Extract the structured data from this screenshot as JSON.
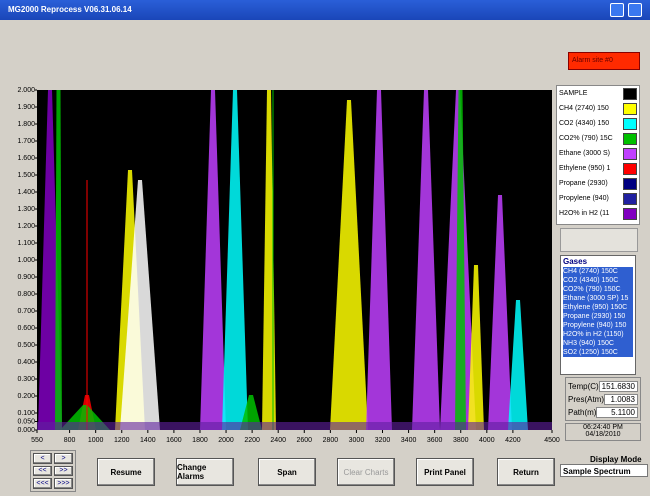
{
  "window": {
    "title": "MG2000 Reprocess   V06.31.06.14",
    "alarm": "Alarm site #0"
  },
  "chart_data": {
    "type": "area",
    "xlim": [
      550,
      4500
    ],
    "xticks": [
      550,
      800,
      1000,
      1200,
      1400,
      1600,
      1800,
      2000,
      2200,
      2400,
      2600,
      2800,
      3000,
      3200,
      3400,
      3600,
      3800,
      4000,
      4200,
      4500
    ],
    "ylim": [
      0,
      2
    ],
    "yticks": [
      {
        "value": 0,
        "label": "0.000"
      },
      {
        "value": 0.05,
        "label": "0.050"
      },
      {
        "value": 0.1,
        "label": "0.100"
      },
      {
        "value": 0.2,
        "label": "0.200"
      },
      {
        "value": 0.3,
        "label": "0.300"
      },
      {
        "value": 0.4,
        "label": "0.400"
      },
      {
        "value": 0.5,
        "label": "0.500"
      },
      {
        "value": 0.6,
        "label": "0.600"
      },
      {
        "value": 0.7,
        "label": "0.700"
      },
      {
        "value": 0.8,
        "label": "0.800"
      },
      {
        "value": 0.9,
        "label": "0.900"
      },
      {
        "value": 1,
        "label": "1.000"
      },
      {
        "value": 1.1,
        "label": "1.100"
      },
      {
        "value": 1.2,
        "label": "1.200"
      },
      {
        "value": 1.3,
        "label": "1.300"
      },
      {
        "value": 1.4,
        "label": "1.400"
      },
      {
        "value": 1.5,
        "label": "1.500"
      },
      {
        "value": 1.6,
        "label": "1.600"
      },
      {
        "value": 1.7,
        "label": "1.700"
      },
      {
        "value": 1.8,
        "label": "1.800"
      },
      {
        "value": 1.9,
        "label": "1.900"
      },
      {
        "value": 2,
        "label": "2.000"
      }
    ]
  },
  "legend": [
    {
      "name": "SAMPLE",
      "color": "#000000"
    },
    {
      "name": "CH4 (2740) 150",
      "color": "#ffff00"
    },
    {
      "name": "CO2 (4340) 150",
      "color": "#00ffff"
    },
    {
      "name": "CO2% (790) 15C",
      "color": "#00c000"
    },
    {
      "name": "Ethane (3000 S)",
      "color": "#c040ff"
    },
    {
      "name": "Ethylene (950) 1",
      "color": "#ff0000"
    },
    {
      "name": "Propane (2930)",
      "color": "#000080"
    },
    {
      "name": "Propylene (940)",
      "color": "#2020a0"
    },
    {
      "name": "H2O% in H2 (11",
      "color": "#8000c0"
    }
  ],
  "gases": {
    "title": "Gases",
    "items": [
      "CH4 (2740) 150C",
      "CO2 (4340) 150C",
      "CO2% (790) 150C",
      "Ethane (3000 SP) 15",
      "Ethylene (950) 150C",
      "Propane (2930) 150",
      "Propylene (940) 150",
      "H2O% in H2 (1150)",
      "NH3 (940) 150C",
      "SO2 (1250) 150C"
    ]
  },
  "readings": [
    {
      "label": "Temp(C)",
      "value": "151.6830"
    },
    {
      "label": "Pres(Atm)",
      "value": "1.0083"
    },
    {
      "label": "Path(m)",
      "value": "5.1100"
    }
  ],
  "clock": {
    "time": "06:24:40 PM",
    "date": "04/18/2010"
  },
  "nav": [
    "<",
    ">",
    "<<",
    ">>",
    "<<<",
    ">>>"
  ],
  "buttons": [
    "Resume",
    "Change Alarms",
    "Span",
    "Clear Charts",
    "Print Panel",
    "Return"
  ],
  "display_mode": {
    "label": "Display Mode",
    "value": "Sample Spectrum"
  }
}
